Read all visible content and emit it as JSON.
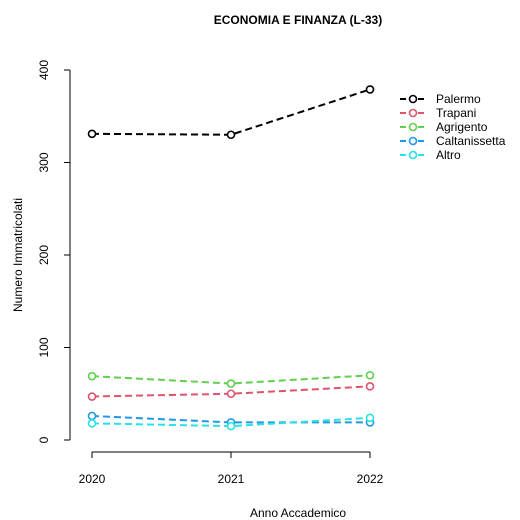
{
  "chart_data": {
    "type": "line",
    "title": "ECONOMIA E FINANZA (L-33)",
    "xlabel": "Anno Accademico",
    "ylabel": "Numero Immatricolati",
    "x": [
      "2020",
      "2021",
      "2022"
    ],
    "ylim": [
      0,
      400
    ],
    "yticks": [
      0,
      100,
      200,
      300,
      400
    ],
    "grid": false,
    "legend_position": "top-right",
    "series": [
      {
        "name": "Palermo",
        "color": "#000000",
        "values": [
          331,
          330,
          379
        ]
      },
      {
        "name": "Trapani",
        "color": "#DF536B",
        "values": [
          47,
          50,
          58
        ]
      },
      {
        "name": "Agrigento",
        "color": "#61D04F",
        "values": [
          69,
          61,
          70
        ]
      },
      {
        "name": "Caltanissetta",
        "color": "#2297E6",
        "values": [
          26,
          19,
          19
        ]
      },
      {
        "name": "Altro",
        "color": "#28E2E5",
        "values": [
          18,
          15,
          24
        ]
      }
    ]
  }
}
